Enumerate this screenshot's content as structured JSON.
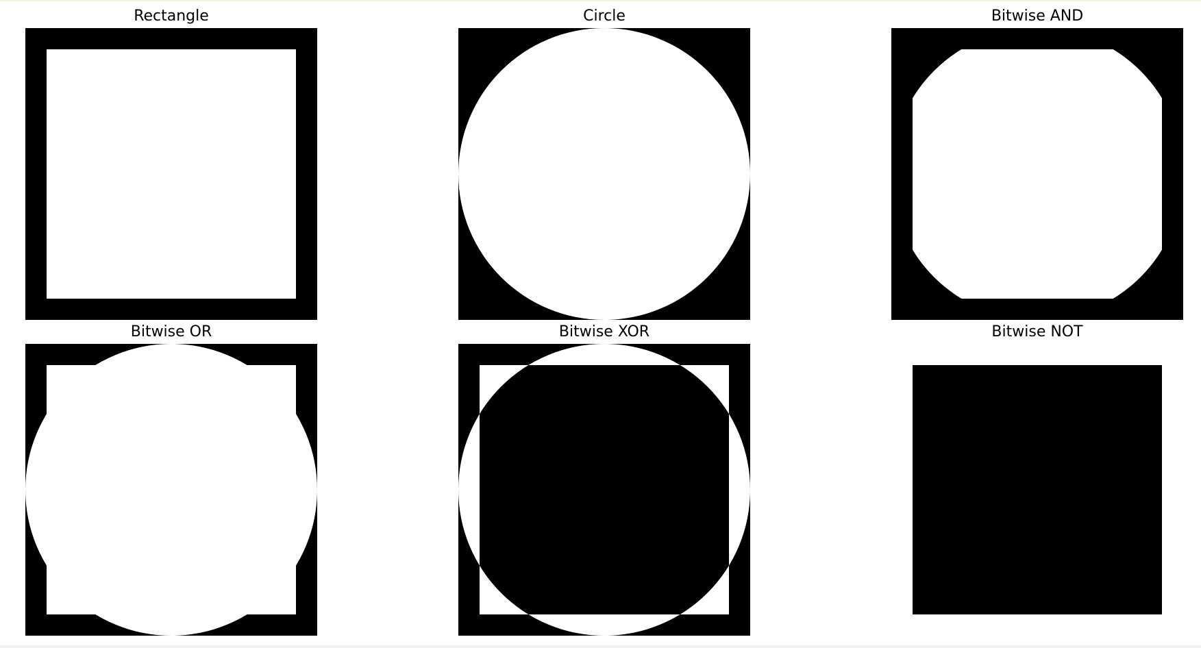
{
  "colors": {
    "foreground": "#ffffff",
    "background": "#000000",
    "page": "#ffffff"
  },
  "panels": [
    {
      "title": "Rectangle",
      "operation": "rectangle"
    },
    {
      "title": "Circle",
      "operation": "circle"
    },
    {
      "title": "Bitwise AND",
      "operation": "and"
    },
    {
      "title": "Bitwise OR",
      "operation": "or"
    },
    {
      "title": "Bitwise XOR",
      "operation": "xor"
    },
    {
      "title": "Bitwise NOT",
      "operation": "not"
    }
  ]
}
